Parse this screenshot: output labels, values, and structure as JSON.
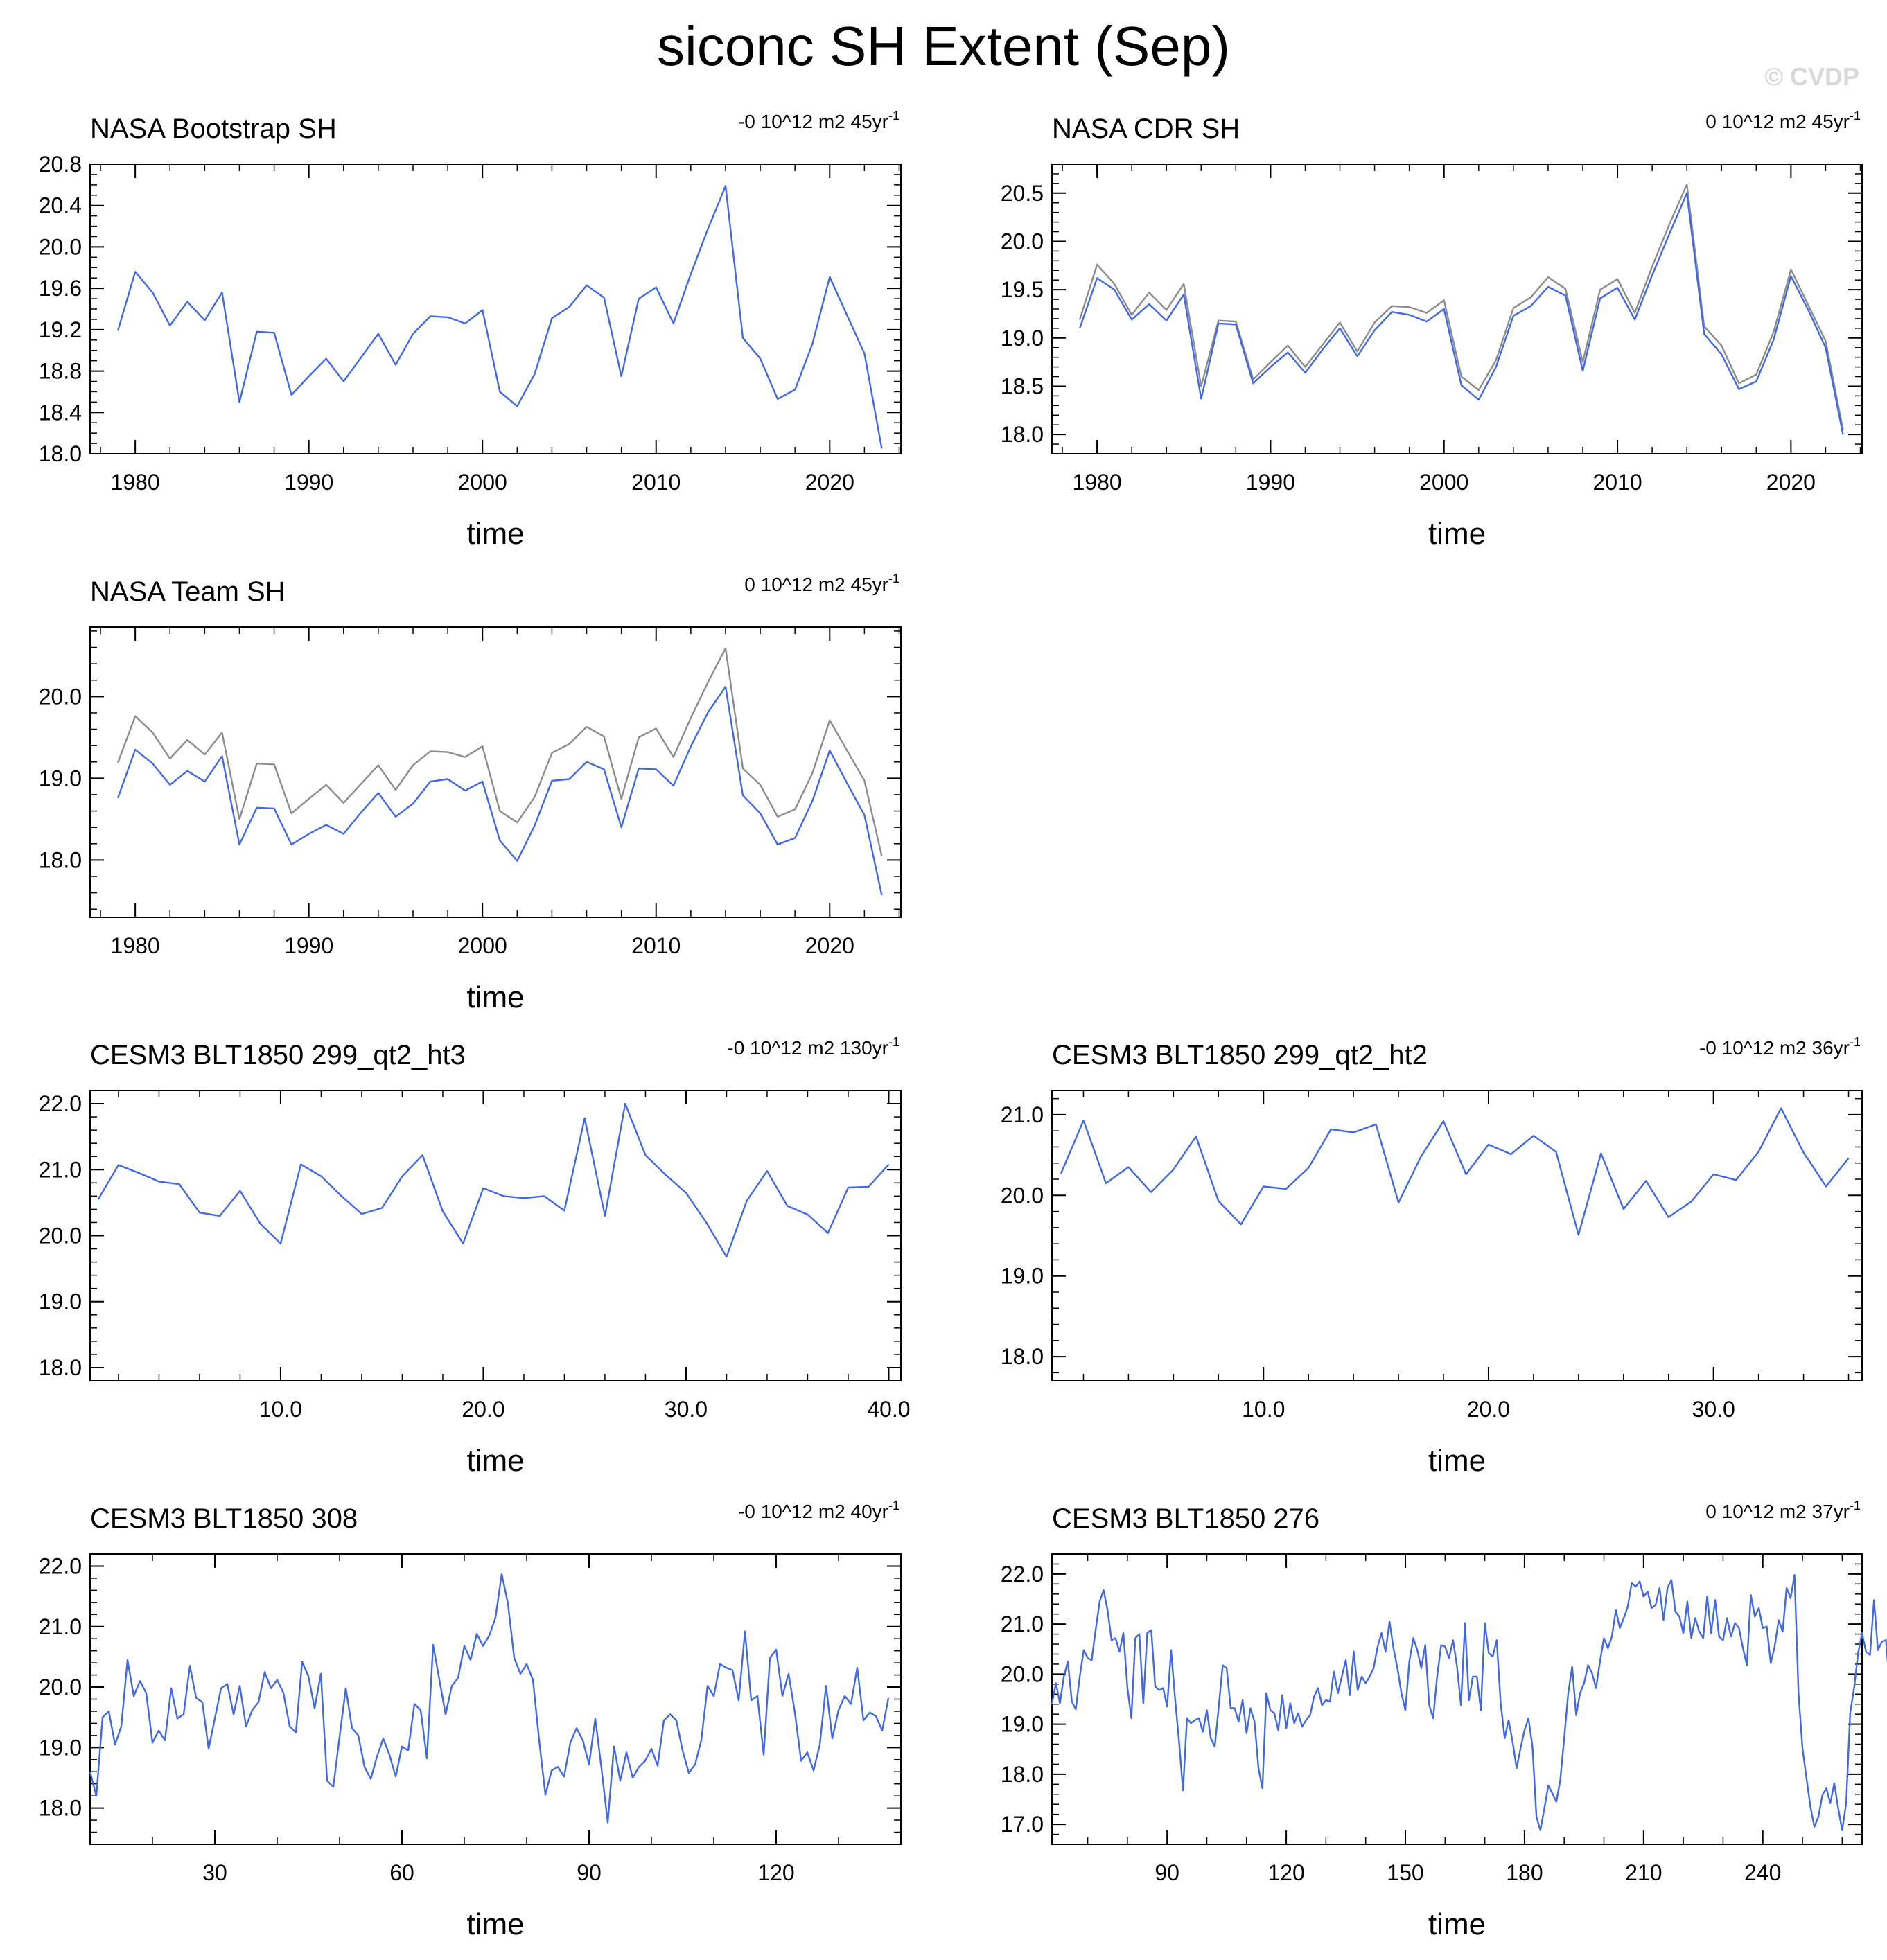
{
  "title": "siconc SH Extent (Sep)",
  "watermark": "© CVDP",
  "colors": {
    "obs": "#4169e1",
    "ref": "#8c8c8c",
    "axis": "#000000"
  },
  "chart_data": [
    {
      "type": "line",
      "title": "NASA Bootstrap SH",
      "trend_text": "-0 10^12 m2 45yr",
      "trend_sup": "-1",
      "xlabel": "time",
      "xlim": [
        1977.4,
        2024.1
      ],
      "ylim": [
        18.0,
        20.8
      ],
      "xticks": [
        1980,
        1990,
        2000,
        2010,
        2020
      ],
      "xtick_labels": [
        "1980",
        "1990",
        "2000",
        "2010",
        "2020"
      ],
      "yticks": [
        18.0,
        18.4,
        18.8,
        19.2,
        19.6,
        20.0,
        20.4,
        20.8
      ],
      "ytick_labels": [
        "18.0",
        "18.4",
        "18.8",
        "19.2",
        "19.6",
        "20.0",
        "20.4",
        "20.8"
      ],
      "xminor": 2,
      "yminor": 0.1,
      "series": [
        {
          "color": "#4169e1",
          "x_start": 1979,
          "x_step": 1,
          "values": [
            19.19,
            19.76,
            19.56,
            19.24,
            19.47,
            19.29,
            19.56,
            18.5,
            19.18,
            19.17,
            18.57,
            18.75,
            18.92,
            18.7,
            18.93,
            19.16,
            18.86,
            19.16,
            19.33,
            19.32,
            19.26,
            19.39,
            18.6,
            18.46,
            18.77,
            19.31,
            19.42,
            19.63,
            19.51,
            18.75,
            19.5,
            19.61,
            19.26,
            19.74,
            20.18,
            20.59,
            19.12,
            18.92,
            18.53,
            18.62,
            19.06,
            19.71,
            19.34,
            18.97,
            18.05
          ]
        }
      ]
    },
    {
      "type": "line",
      "title": "NASA CDR SH",
      "trend_text": "0 10^12 m2 45yr",
      "trend_sup": "-1",
      "xlabel": "time",
      "xlim": [
        1977.4,
        2024.1
      ],
      "ylim": [
        17.8,
        20.8
      ],
      "xticks": [
        1980,
        1990,
        2000,
        2010,
        2020
      ],
      "xtick_labels": [
        "1980",
        "1990",
        "2000",
        "2010",
        "2020"
      ],
      "yticks": [
        18.0,
        18.5,
        19.0,
        19.5,
        20.0,
        20.5
      ],
      "ytick_labels": [
        "18.0",
        "18.5",
        "19.0",
        "19.5",
        "20.0",
        "20.5"
      ],
      "xminor": 2,
      "yminor": 0.1,
      "series": [
        {
          "color": "#8c8c8c",
          "x_start": 1979,
          "x_step": 1,
          "values": [
            19.19,
            19.76,
            19.56,
            19.24,
            19.47,
            19.29,
            19.56,
            18.5,
            19.18,
            19.17,
            18.57,
            18.75,
            18.92,
            18.7,
            18.93,
            19.16,
            18.86,
            19.16,
            19.33,
            19.32,
            19.26,
            19.39,
            18.6,
            18.46,
            18.77,
            19.31,
            19.42,
            19.63,
            19.51,
            18.75,
            19.5,
            19.61,
            19.26,
            19.74,
            20.18,
            20.59,
            19.12,
            18.92,
            18.53,
            18.62,
            19.06,
            19.71,
            19.34,
            18.97,
            18.05
          ]
        },
        {
          "color": "#4169e1",
          "x_start": 1979,
          "x_step": 1,
          "values": [
            19.1,
            19.62,
            19.5,
            19.19,
            19.35,
            19.18,
            19.45,
            18.37,
            19.15,
            19.14,
            18.53,
            18.7,
            18.85,
            18.64,
            18.88,
            19.1,
            18.81,
            19.08,
            19.27,
            19.24,
            19.17,
            19.3,
            18.51,
            18.36,
            18.7,
            19.23,
            19.33,
            19.53,
            19.44,
            18.66,
            19.41,
            19.52,
            19.19,
            19.65,
            20.08,
            20.5,
            19.04,
            18.83,
            18.47,
            18.55,
            18.98,
            19.64,
            19.29,
            18.9,
            18.0
          ]
        }
      ]
    },
    {
      "type": "line",
      "title": "NASA Team SH",
      "trend_text": "0 10^12 m2 45yr",
      "trend_sup": "-1",
      "xlabel": "time",
      "xlim": [
        1977.4,
        2024.1
      ],
      "ylim": [
        17.3,
        20.85
      ],
      "xticks": [
        1980,
        1990,
        2000,
        2010,
        2020
      ],
      "xtick_labels": [
        "1980",
        "1990",
        "2000",
        "2010",
        "2020"
      ],
      "yticks": [
        18.0,
        19.0,
        20.0
      ],
      "ytick_labels": [
        "18.0",
        "19.0",
        "20.0"
      ],
      "xminor": 2,
      "yminor": 0.2,
      "series": [
        {
          "color": "#8c8c8c",
          "x_start": 1979,
          "x_step": 1,
          "values": [
            19.19,
            19.76,
            19.56,
            19.24,
            19.47,
            19.29,
            19.56,
            18.5,
            19.18,
            19.17,
            18.57,
            18.75,
            18.92,
            18.7,
            18.93,
            19.16,
            18.86,
            19.16,
            19.33,
            19.32,
            19.26,
            19.39,
            18.6,
            18.46,
            18.77,
            19.31,
            19.42,
            19.63,
            19.51,
            18.75,
            19.5,
            19.61,
            19.26,
            19.74,
            20.18,
            20.59,
            19.12,
            18.92,
            18.53,
            18.62,
            19.06,
            19.71,
            19.34,
            18.97,
            18.05
          ]
        },
        {
          "color": "#4169e1",
          "x_start": 1979,
          "x_step": 1,
          "values": [
            18.76,
            19.35,
            19.18,
            18.92,
            19.09,
            18.96,
            19.27,
            18.19,
            18.64,
            18.63,
            18.19,
            18.32,
            18.43,
            18.32,
            18.58,
            18.82,
            18.53,
            18.69,
            18.96,
            18.99,
            18.85,
            18.96,
            18.24,
            17.99,
            18.42,
            18.97,
            18.99,
            19.2,
            19.11,
            18.4,
            19.12,
            19.11,
            18.91,
            19.39,
            19.81,
            20.12,
            18.79,
            18.57,
            18.19,
            18.27,
            18.72,
            19.34,
            18.94,
            18.55,
            17.57
          ]
        }
      ]
    },
    {
      "type": "line",
      "title": "CESM3 BLT1850 299_qt2_ht3",
      "trend_text": "-0 10^12 m2 130yr",
      "trend_sup": "-1",
      "xlabel": "time",
      "xlim": [
        0.6,
        40.6
      ],
      "ylim": [
        17.8,
        22.2
      ],
      "xticks": [
        10,
        20,
        30,
        40
      ],
      "xtick_labels": [
        "10.0",
        "20.0",
        "30.0",
        "40.0"
      ],
      "yticks": [
        18.0,
        19.0,
        20.0,
        21.0,
        22.0
      ],
      "ytick_labels": [
        "18.0",
        "19.0",
        "20.0",
        "21.0",
        "22.0"
      ],
      "xminor": 2,
      "yminor": 0.2,
      "series": [
        {
          "color": "#4169e1",
          "x_start": 1,
          "x_step": 1,
          "values": [
            20.55,
            21.07,
            20.95,
            20.82,
            20.78,
            20.35,
            20.3,
            20.68,
            20.18,
            19.88,
            21.08,
            20.9,
            20.6,
            20.33,
            20.42,
            20.9,
            21.22,
            20.37,
            19.88,
            20.72,
            20.6,
            20.57,
            20.6,
            20.38,
            21.78,
            20.3,
            22.0,
            21.22,
            20.92,
            20.65,
            20.2,
            19.68,
            20.53,
            20.98,
            20.45,
            20.32,
            20.04,
            20.73,
            20.74,
            21.08
          ]
        }
      ]
    },
    {
      "type": "line",
      "title": "CESM3 BLT1850 299_qt2_ht2",
      "trend_text": "-0 10^12 m2 36yr",
      "trend_sup": "-1",
      "xlabel": "time",
      "xlim": [
        0.6,
        36.6
      ],
      "ylim": [
        17.7,
        21.3
      ],
      "xticks": [
        10,
        20,
        30
      ],
      "xtick_labels": [
        "10.0",
        "20.0",
        "30.0"
      ],
      "yticks": [
        18.0,
        19.0,
        20.0,
        21.0
      ],
      "ytick_labels": [
        "18.0",
        "19.0",
        "20.0",
        "21.0"
      ],
      "xminor": 2,
      "yminor": 0.2,
      "series": [
        {
          "color": "#4169e1",
          "x_start": 1,
          "x_step": 1,
          "values": [
            20.27,
            20.93,
            20.15,
            20.35,
            20.04,
            20.32,
            20.73,
            19.93,
            19.64,
            20.11,
            20.08,
            20.34,
            20.82,
            20.78,
            20.88,
            19.91,
            20.48,
            20.92,
            20.26,
            20.63,
            20.51,
            20.74,
            20.54,
            19.51,
            20.52,
            19.83,
            20.18,
            19.73,
            19.92,
            20.26,
            20.19,
            20.54,
            21.08,
            20.53,
            20.11,
            20.46
          ]
        }
      ]
    },
    {
      "type": "line",
      "title": "CESM3 BLT1850 308",
      "trend_text": "-0 10^12 m2 40yr",
      "trend_sup": "-1",
      "xlabel": "time",
      "xlim": [
        10,
        140
      ],
      "ylim": [
        17.4,
        22.2
      ],
      "xticks": [
        30,
        60,
        90,
        120
      ],
      "xtick_labels": [
        "30",
        "60",
        "90",
        "120"
      ],
      "xminor": 10,
      "yticks": [
        18.0,
        19.0,
        20.0,
        21.0,
        22.0
      ],
      "ytick_labels": [
        "18.0",
        "19.0",
        "20.0",
        "21.0",
        "22.0"
      ],
      "yminor": 0.2,
      "series": [
        {
          "color": "#4169e1",
          "x_start": 10,
          "x_step": 1,
          "values": [
            18.6,
            18.2,
            19.5,
            19.6,
            19.05,
            19.35,
            20.45,
            19.85,
            20.1,
            19.9,
            19.08,
            19.28,
            19.12,
            19.98,
            19.48,
            19.55,
            20.35,
            19.82,
            19.75,
            18.98,
            19.48,
            19.98,
            20.05,
            19.55,
            20.02,
            19.35,
            19.62,
            19.75,
            20.25,
            19.98,
            20.12,
            19.9,
            19.35,
            19.25,
            20.42,
            20.18,
            19.65,
            20.22,
            18.45,
            18.35,
            19.18,
            19.98,
            19.32,
            19.2,
            18.68,
            18.48,
            18.85,
            19.15,
            18.88,
            18.52,
            19.02,
            18.95,
            19.72,
            19.62,
            18.82,
            20.7,
            20.12,
            19.55,
            20.02,
            20.15,
            20.68,
            20.45,
            20.88,
            20.68,
            20.85,
            21.15,
            21.87,
            21.38,
            20.48,
            20.22,
            20.38,
            20.12,
            19.12,
            18.22,
            18.62,
            18.68,
            18.52,
            19.08,
            19.32,
            19.12,
            18.72,
            19.48,
            18.65,
            17.76,
            19.02,
            18.45,
            18.92,
            18.5,
            18.68,
            18.78,
            18.98,
            18.7,
            19.45,
            19.55,
            19.45,
            18.95,
            18.58,
            18.72,
            19.12,
            20.02,
            19.85,
            20.38,
            20.32,
            20.28,
            19.78,
            20.92,
            19.78,
            19.85,
            18.88,
            20.48,
            20.62,
            19.85,
            20.22,
            19.58,
            18.78,
            18.92,
            18.62,
            19.05,
            20.02,
            19.15,
            19.62,
            19.85,
            19.72,
            20.32,
            19.45,
            19.58,
            19.52,
            19.28,
            19.82
          ]
        }
      ]
    },
    {
      "type": "line",
      "title": "CESM3 BLT1850 276",
      "trend_text": "0 10^12 m2 37yr",
      "trend_sup": "-1",
      "xlabel": "time",
      "xlim": [
        61,
        265
      ],
      "ylim": [
        16.6,
        22.4
      ],
      "xticks": [
        90,
        120,
        150,
        180,
        210,
        240
      ],
      "xtick_labels": [
        "90",
        "120",
        "150",
        "180",
        "210",
        "240"
      ],
      "xminor": 10,
      "yticks": [
        17.0,
        18.0,
        19.0,
        20.0,
        21.0,
        22.0
      ],
      "ytick_labels": [
        "17.0",
        "18.0",
        "19.0",
        "20.0",
        "21.0",
        "22.0"
      ],
      "yminor": 0.2,
      "series": [
        {
          "color": "#4169e1",
          "x_start": 61,
          "x_step": 1,
          "values": [
            19.4,
            19.82,
            19.42,
            19.95,
            20.25,
            19.45,
            19.3,
            19.95,
            20.48,
            20.32,
            20.28,
            20.88,
            21.45,
            21.68,
            21.28,
            20.68,
            20.72,
            20.45,
            20.82,
            19.72,
            19.12,
            20.72,
            20.8,
            19.42,
            20.82,
            20.88,
            19.75,
            19.68,
            19.72,
            19.35,
            20.48,
            19.52,
            18.65,
            17.68,
            19.12,
            19.02,
            19.08,
            19.12,
            18.85,
            19.28,
            18.72,
            18.55,
            19.35,
            20.18,
            20.12,
            19.32,
            19.32,
            19.05,
            19.48,
            18.82,
            19.32,
            19.05,
            18.12,
            17.72,
            19.62,
            19.28,
            19.22,
            18.88,
            19.58,
            18.92,
            19.42,
            19.02,
            19.22,
            18.95,
            19.08,
            19.18,
            19.55,
            19.72,
            19.38,
            19.48,
            19.45,
            20.05,
            19.62,
            19.95,
            20.28,
            19.58,
            20.45,
            19.68,
            19.95,
            19.82,
            19.95,
            20.12,
            20.55,
            20.82,
            20.45,
            21.05,
            20.52,
            20.12,
            19.62,
            19.28,
            20.25,
            20.72,
            20.48,
            20.12,
            20.58,
            19.38,
            19.12,
            19.95,
            20.58,
            20.55,
            20.32,
            20.68,
            20.15,
            19.38,
            21.02,
            19.48,
            19.95,
            19.95,
            19.28,
            21.02,
            20.42,
            20.35,
            20.68,
            19.42,
            18.72,
            19.08,
            18.65,
            18.12,
            18.52,
            18.88,
            19.12,
            18.55,
            17.15,
            16.88,
            17.32,
            17.78,
            17.62,
            17.45,
            17.88,
            18.72,
            19.62,
            20.15,
            19.18,
            19.62,
            19.82,
            20.18,
            20.02,
            19.72,
            20.25,
            20.72,
            20.52,
            20.75,
            21.28,
            20.92,
            21.12,
            21.35,
            21.82,
            21.75,
            21.85,
            21.55,
            21.65,
            21.32,
            21.38,
            21.72,
            21.08,
            21.72,
            21.88,
            21.25,
            21.15,
            20.82,
            21.45,
            20.72,
            21.12,
            20.85,
            20.72,
            21.55,
            20.82,
            21.48,
            20.75,
            20.68,
            21.12,
            20.75,
            21.02,
            20.92,
            20.52,
            20.18,
            21.58,
            21.15,
            21.32,
            20.92,
            20.95,
            20.22,
            20.55,
            21.08,
            20.85,
            21.72,
            21.52,
            21.98,
            19.62,
            18.52,
            17.92,
            17.35,
            16.95,
            17.15,
            17.58,
            17.72,
            17.42,
            17.82,
            17.32,
            16.88,
            17.42,
            19.22,
            19.72,
            20.42,
            20.82,
            20.45,
            20.38,
            21.48,
            20.48,
            20.65,
            20.68,
            19.72
          ]
        }
      ]
    }
  ]
}
